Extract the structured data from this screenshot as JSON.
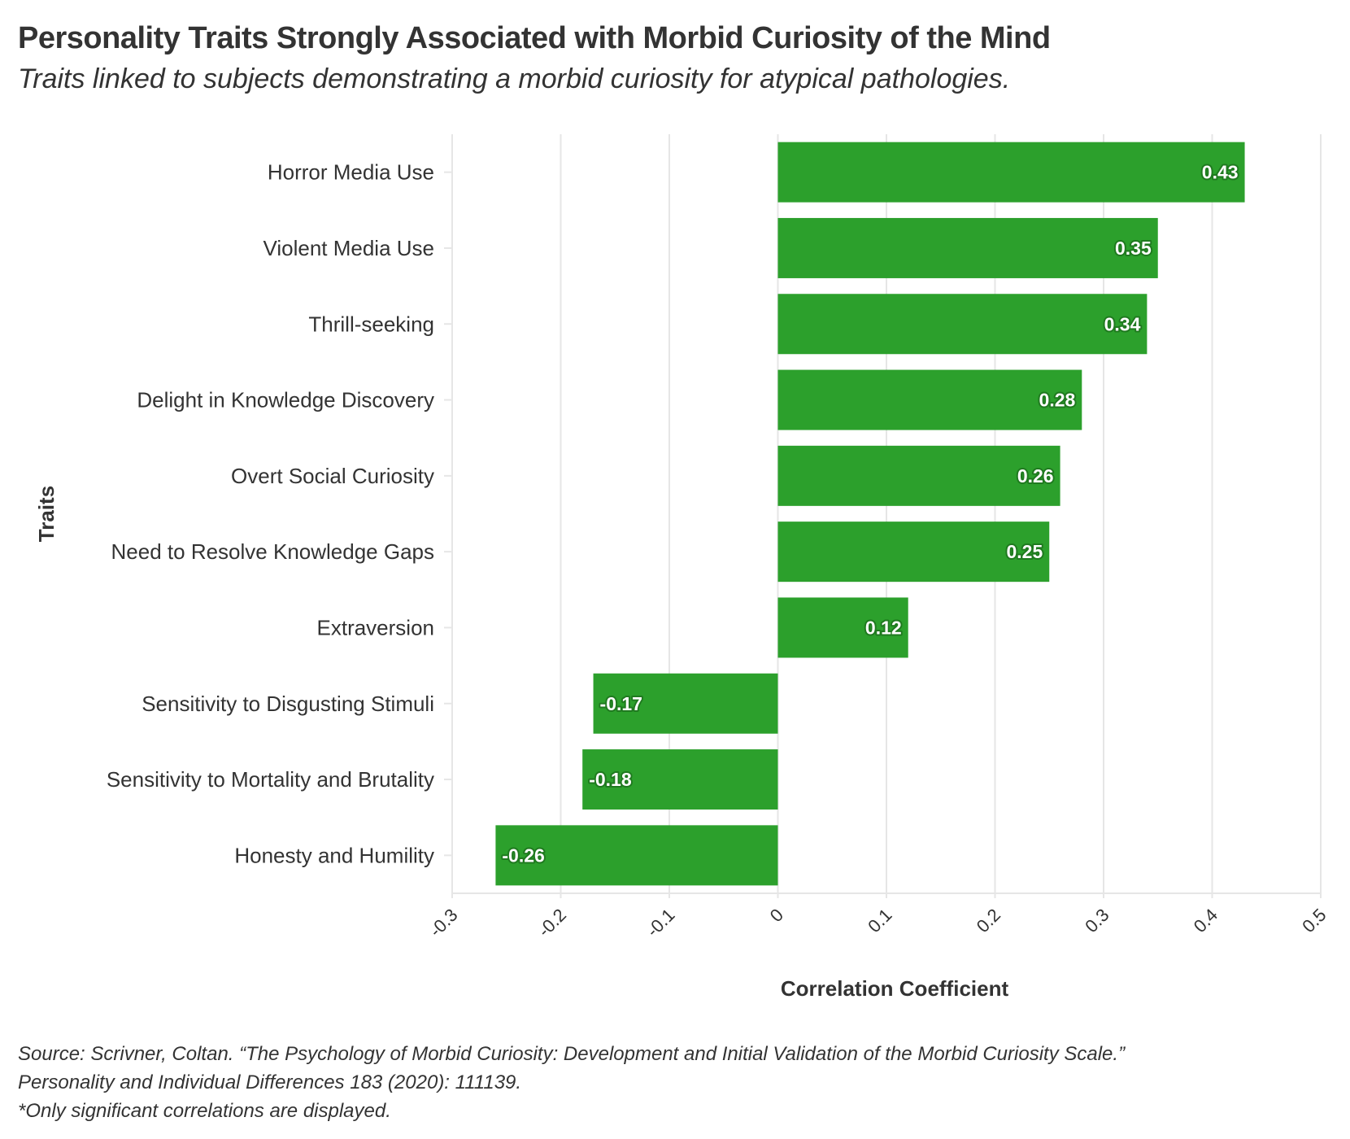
{
  "title": "Personality Traits Strongly Associated with Morbid Curiosity of the Mind",
  "subtitle": "Traits linked to subjects demonstrating a morbid curiosity for atypical pathologies.",
  "footnote": {
    "line1": "Source: Scrivner, Coltan. “The Psychology of Morbid Curiosity: Development and Initial Validation of the Morbid Curiosity Scale.”",
    "line2": "Personality and Individual Differences 183 (2020): 111139.",
    "line3": "*Only significant correlations are displayed."
  },
  "colors": {
    "bar": "#2ca02c",
    "grid": "#e6e6e6",
    "text": "#333333",
    "label_outline": "#1f7a1f"
  },
  "chart_data": {
    "type": "bar",
    "orientation": "horizontal",
    "title": "Personality Traits Strongly Associated with Morbid Curiosity of the Mind",
    "xlabel": "Correlation Coefficient",
    "ylabel": "Traits",
    "xlim": [
      -0.3,
      0.5
    ],
    "xticks": [
      -0.3,
      -0.2,
      -0.1,
      0,
      0.1,
      0.2,
      0.3,
      0.4,
      0.5
    ],
    "xtick_labels": [
      "-0.3",
      "-0.2",
      "-0.1",
      "0",
      "0.1",
      "0.2",
      "0.3",
      "0.4",
      "0.5"
    ],
    "grid": true,
    "categories": [
      "Horror Media Use",
      "Violent Media Use",
      "Thrill-seeking",
      "Delight in Knowledge Discovery",
      "Overt Social Curiosity",
      "Need to Resolve Knowledge Gaps",
      "Extraversion",
      "Sensitivity to Disgusting Stimuli",
      "Sensitivity to Mortality and Brutality",
      "Honesty and Humility"
    ],
    "values": [
      0.43,
      0.35,
      0.34,
      0.28,
      0.26,
      0.25,
      0.12,
      -0.17,
      -0.18,
      -0.26
    ],
    "value_labels": [
      "0.43",
      "0.35",
      "0.34",
      "0.28",
      "0.26",
      "0.25",
      "0.12",
      "-0.17",
      "-0.18",
      "-0.26"
    ]
  }
}
